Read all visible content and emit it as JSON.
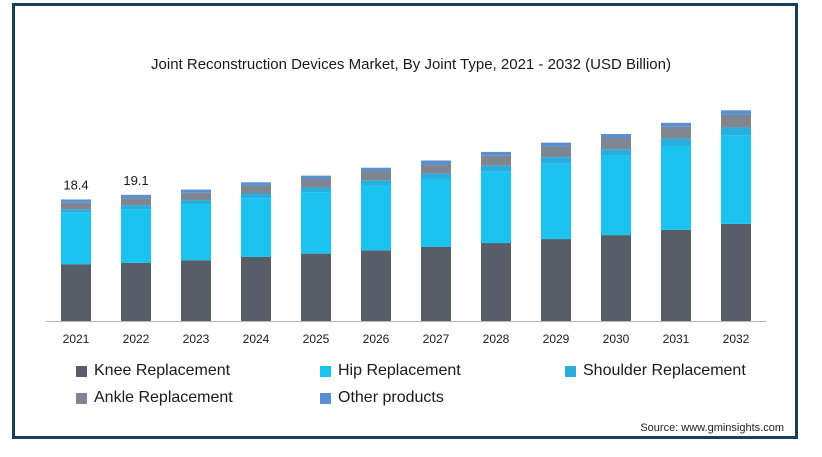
{
  "chart_data": {
    "type": "bar",
    "stacked": true,
    "title": "Joint Reconstruction Devices Market, By Joint Type, 2021 - 2032 (USD Billion)",
    "categories": [
      "2021",
      "2022",
      "2023",
      "2024",
      "2025",
      "2026",
      "2027",
      "2028",
      "2029",
      "2030",
      "2031",
      "2032"
    ],
    "series": [
      {
        "name": "Knee Replacement",
        "color": "#575e68",
        "values": [
          8.6,
          8.8,
          9.2,
          9.7,
          10.2,
          10.7,
          11.2,
          11.8,
          12.4,
          13.0,
          13.8,
          14.7
        ]
      },
      {
        "name": "Hip Replacement",
        "color": "#1ac4ef",
        "values": [
          7.8,
          8.1,
          8.5,
          8.9,
          9.3,
          9.8,
          10.3,
          10.8,
          11.4,
          12.0,
          12.7,
          13.4
        ]
      },
      {
        "name": "Shoulder Replacement",
        "color": "#29aee0",
        "values": [
          0.5,
          0.6,
          0.6,
          0.7,
          0.7,
          0.8,
          0.8,
          0.9,
          1.0,
          1.0,
          1.1,
          1.2
        ]
      },
      {
        "name": "Ankle Replacement",
        "color": "#7d8691",
        "values": [
          1.0,
          1.1,
          1.1,
          1.2,
          1.3,
          1.4,
          1.4,
          1.5,
          1.6,
          1.7,
          1.8,
          1.9
        ]
      },
      {
        "name": "Other products",
        "color": "#5a8fd0",
        "values": [
          0.5,
          0.5,
          0.5,
          0.5,
          0.5,
          0.5,
          0.6,
          0.6,
          0.6,
          0.6,
          0.6,
          0.7
        ]
      }
    ],
    "data_labels": [
      {
        "category": "2021",
        "text": "18.4"
      },
      {
        "category": "2022",
        "text": "19.1"
      }
    ],
    "ylim": [
      0,
      33
    ],
    "grid": false,
    "legend_position": "bottom"
  },
  "legend": [
    {
      "label": "Knee Replacement",
      "color": "#575e68"
    },
    {
      "label": "Hip Replacement",
      "color": "#1ac4ef"
    },
    {
      "label": "Shoulder Replacement",
      "color": "#29aee0"
    },
    {
      "label": "Ankle Replacement",
      "color": "#7d8691"
    },
    {
      "label": "Other products",
      "color": "#5a8fd0"
    }
  ],
  "source": "Source: www.gminsights.com"
}
